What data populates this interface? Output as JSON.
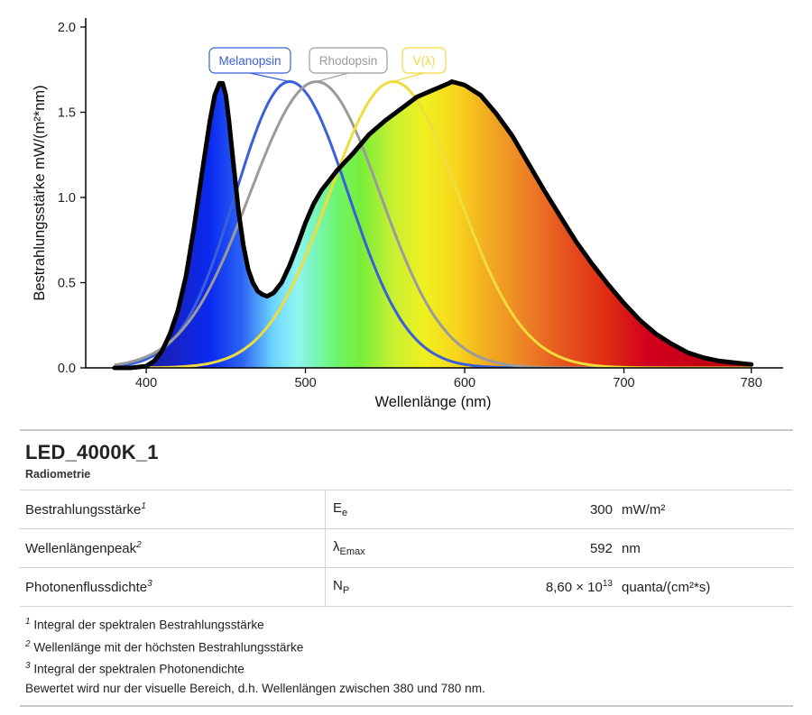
{
  "chart_data": {
    "type": "area",
    "xlabel": "Wellenlänge (nm)",
    "ylabel": "Bestrahlungsstärke  mW/(m²*nm)",
    "xlim": [
      362,
      800
    ],
    "ylim": [
      0,
      2.0
    ],
    "xticks": [
      400,
      500,
      600,
      700,
      780
    ],
    "yticks": [
      "0.0",
      "0.5",
      "1.0",
      "1.5",
      "2.0"
    ],
    "grid": false,
    "series": [
      {
        "name": "",
        "color": "#000000",
        "fill": "spectral",
        "x": [
          380,
          390,
          400,
          405,
          410,
          415,
          420,
          425,
          430,
          435,
          440,
          443,
          446,
          448,
          450,
          452,
          455,
          458,
          461,
          464,
          467,
          470,
          473,
          476,
          480,
          485,
          490,
          495,
          500,
          505,
          510,
          515,
          520,
          530,
          540,
          550,
          560,
          570,
          580,
          590,
          592,
          600,
          610,
          620,
          630,
          640,
          650,
          660,
          670,
          680,
          690,
          700,
          710,
          720,
          730,
          740,
          750,
          760,
          770,
          780
        ],
        "values": [
          0.0,
          0.0,
          0.01,
          0.04,
          0.1,
          0.2,
          0.34,
          0.54,
          0.82,
          1.14,
          1.45,
          1.6,
          1.67,
          1.67,
          1.6,
          1.45,
          1.18,
          0.92,
          0.72,
          0.58,
          0.5,
          0.45,
          0.43,
          0.42,
          0.44,
          0.5,
          0.6,
          0.72,
          0.85,
          0.96,
          1.04,
          1.1,
          1.16,
          1.26,
          1.37,
          1.45,
          1.52,
          1.59,
          1.63,
          1.67,
          1.68,
          1.66,
          1.6,
          1.49,
          1.36,
          1.2,
          1.04,
          0.89,
          0.74,
          0.61,
          0.49,
          0.38,
          0.28,
          0.2,
          0.14,
          0.09,
          0.06,
          0.04,
          0.03,
          0.02
        ]
      },
      {
        "name": "Melanopsin",
        "color": "#3a5fd8",
        "peak_nm": 490,
        "peak_value": 1.68,
        "sigma_left": 34,
        "sigma_right": 37
      },
      {
        "name": "Rhodopsin",
        "color": "#9b9b9b",
        "peak_nm": 507,
        "peak_value": 1.68,
        "sigma_left": 42,
        "sigma_right": 40
      },
      {
        "name": "V(λ)",
        "color": "#f0dc3c",
        "peak_nm": 555,
        "peak_value": 1.68,
        "sigma_left": 40,
        "sigma_right": 41
      }
    ],
    "legend": [
      "Melanopsin",
      "Rhodopsin",
      "V(λ)"
    ]
  },
  "panel": {
    "title": "LED_4000K_1",
    "subtitle": "Radiometrie",
    "rows": [
      {
        "label": "Bestrahlungsstärke",
        "note": "1",
        "symbol": "E",
        "symbol_sub": "e",
        "value": "300",
        "value_sup": "",
        "unit": "mW/m²"
      },
      {
        "label": "Wellenlängenpeak",
        "note": "2",
        "symbol": "λ",
        "symbol_sub": "Emax",
        "value": "592",
        "value_sup": "",
        "unit": "nm"
      },
      {
        "label": "Photonenflussdichte",
        "note": "3",
        "symbol": "N",
        "symbol_sub": "P",
        "value": "8,60 × 10",
        "value_sup": "13",
        "unit": "quanta/(cm²*s)"
      }
    ],
    "footnotes": [
      {
        "num": "1",
        "text": "Integral der spektralen Bestrahlungsstärke"
      },
      {
        "num": "2",
        "text": "Wellenlänge mit der höchsten Bestrahlungsstärke"
      },
      {
        "num": "3",
        "text": "Integral der spektralen Photonendichte"
      }
    ],
    "remark": "Bewertet wird nur der visuelle Bereich, d.h. Wellenlängen zwischen 380 und 780 nm."
  }
}
